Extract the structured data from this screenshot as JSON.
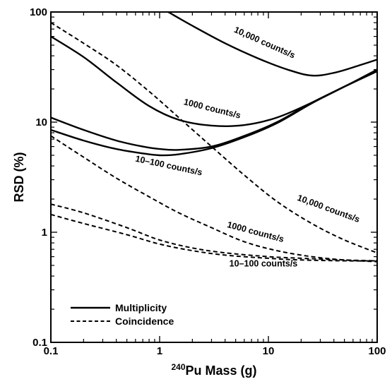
{
  "chart_data": {
    "type": "line",
    "xscale": "log",
    "yscale": "log",
    "xlim": [
      0.1,
      100
    ],
    "ylim": [
      0.1,
      100
    ],
    "xlabel_prefix": "240",
    "xlabel": "Pu Mass (g)",
    "ylabel": "RSD (%)",
    "x_tick_labels": [
      "0.1",
      "1",
      "10",
      "100"
    ],
    "y_tick_labels": [
      "0.1",
      "1",
      "10",
      "100"
    ],
    "grid": false,
    "legend": {
      "position": "bottom-left",
      "entries": [
        {
          "label": "Multiplicity",
          "style": "solid"
        },
        {
          "label": "Coincidence",
          "style": "dashed"
        }
      ]
    },
    "series": [
      {
        "method": "Multiplicity",
        "style": "solid",
        "x": [
          1.2,
          2,
          4,
          8,
          15,
          25,
          40,
          70,
          100
        ],
        "y": [
          100,
          75,
          52,
          38,
          30,
          26.5,
          28,
          33,
          37
        ]
      },
      {
        "method": "Multiplicity",
        "style": "solid",
        "x": [
          0.1,
          0.2,
          0.4,
          0.8,
          1.5,
          3,
          6,
          12,
          25,
          50,
          100
        ],
        "y": [
          60,
          39,
          23,
          14,
          10.5,
          9.3,
          9.4,
          11,
          15,
          21,
          30
        ]
      },
      {
        "method": "Multiplicity",
        "style": "solid",
        "x": [
          0.1,
          0.2,
          0.4,
          0.7,
          1,
          1.5,
          3,
          6,
          12,
          25,
          50,
          100
        ],
        "y": [
          11,
          8.5,
          6.8,
          6.0,
          5.7,
          5.6,
          6.0,
          7.5,
          10,
          15,
          21,
          29
        ]
      },
      {
        "method": "Multiplicity",
        "style": "solid",
        "x": [
          0.1,
          0.2,
          0.4,
          0.7,
          1,
          1.5,
          3,
          6,
          12,
          25,
          50,
          100
        ],
        "y": [
          8.5,
          6.8,
          5.7,
          5.2,
          5.0,
          5.1,
          5.8,
          7.3,
          9.8,
          14.8,
          21,
          29
        ]
      },
      {
        "method": "Coincidence",
        "style": "dashed",
        "x": [
          0.1,
          0.2,
          0.4,
          0.8,
          1.5,
          3,
          6,
          12,
          25,
          50,
          100
        ],
        "y": [
          80,
          52,
          33,
          19,
          11,
          6.0,
          3.3,
          1.9,
          1.2,
          0.85,
          0.65
        ]
      },
      {
        "method": "Coincidence",
        "style": "dashed",
        "x": [
          0.1,
          0.2,
          0.4,
          0.8,
          1.5,
          3,
          6,
          12,
          25,
          50,
          100
        ],
        "y": [
          7.5,
          4.8,
          3.1,
          2.1,
          1.5,
          1.1,
          0.82,
          0.68,
          0.6,
          0.56,
          0.54
        ]
      },
      {
        "method": "Coincidence",
        "style": "dashed",
        "x": [
          0.1,
          0.2,
          0.5,
          1,
          2,
          4,
          10,
          20,
          50,
          100
        ],
        "y": [
          1.8,
          1.5,
          1.1,
          0.85,
          0.72,
          0.65,
          0.6,
          0.58,
          0.56,
          0.55
        ]
      },
      {
        "method": "Coincidence",
        "style": "dashed",
        "x": [
          0.1,
          0.2,
          0.5,
          1,
          2,
          4,
          10,
          20,
          50,
          100
        ],
        "y": [
          1.45,
          1.2,
          0.95,
          0.78,
          0.68,
          0.62,
          0.58,
          0.56,
          0.55,
          0.55
        ]
      }
    ],
    "annotations": [
      {
        "text": "10,000 counts/s",
        "x": 9,
        "y": 50,
        "angle": 24
      },
      {
        "text": "1000 counts/s",
        "x": 3.0,
        "y": 12.5,
        "angle": 14
      },
      {
        "text": "10–100 counts/s",
        "x": 1.2,
        "y": 3.8,
        "angle": 12
      },
      {
        "text": "10,000 counts/s",
        "x": 35,
        "y": 1.55,
        "angle": 20
      },
      {
        "text": "1000 counts/s",
        "x": 7.5,
        "y": 0.95,
        "angle": 15
      },
      {
        "text": "10–100 counts/s",
        "x": 9,
        "y": 0.49,
        "angle": 0
      }
    ]
  }
}
